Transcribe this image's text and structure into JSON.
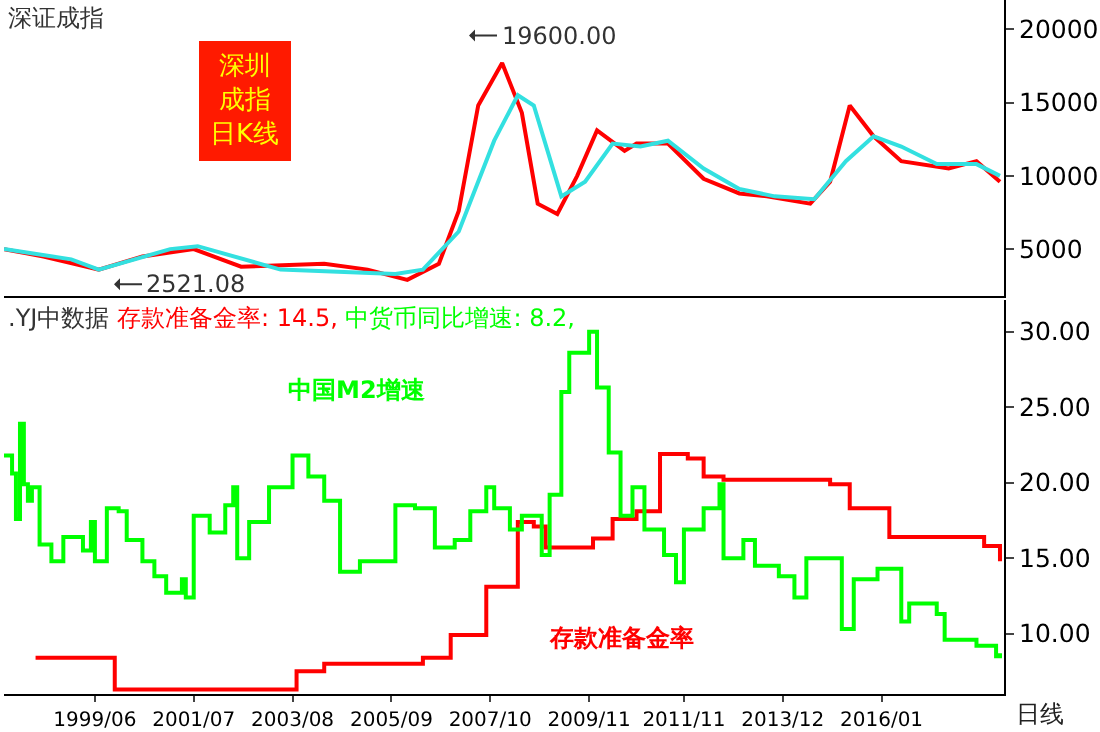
{
  "chart_data": [
    {
      "type": "line",
      "title": "深证成指",
      "xlim": [
        "1997-07",
        "2018-08"
      ],
      "ylim": [
        1800,
        22000
      ],
      "yticks": [
        5000,
        10000,
        15000,
        20000
      ],
      "tick_labels": "y",
      "annotations": [
        "19600.00",
        "2521.08",
        "深圳成指日K线"
      ],
      "series": [
        {
          "color": "#ff0000",
          "x": [
            "1997-07",
            "1998-05",
            "1999-07",
            "2000-06",
            "2001-07",
            "2002-07",
            "2004-04",
            "2005-03",
            "2006-01",
            "2006-09",
            "2007-02",
            "2007-07",
            "2008-01",
            "2008-06",
            "2008-10",
            "2009-03",
            "2009-08",
            "2010-01",
            "2010-08",
            "2010-11",
            "2011-07",
            "2012-04",
            "2013-01",
            "2013-08",
            "2014-07",
            "2014-12",
            "2015-05",
            "2015-11",
            "2016-06",
            "2017-06",
            "2018-01",
            "2018-07"
          ],
          "values": [
            5000,
            4500,
            3600,
            4500,
            5000,
            3800,
            4000,
            3600,
            2900,
            4000,
            7600,
            14800,
            17700,
            14300,
            8100,
            7400,
            10000,
            13100,
            11700,
            12200,
            12200,
            9800,
            8800,
            8600,
            8100,
            9600,
            14800,
            12700,
            11000,
            10500,
            11000,
            9600
          ]
        },
        {
          "color": "#33e0e0",
          "x": [
            "1997-07",
            "1998-12",
            "1999-07",
            "2001-01",
            "2001-08",
            "2003-05",
            "2005-10",
            "2006-05",
            "2007-02",
            "2007-11",
            "2008-05",
            "2008-09",
            "2009-04",
            "2009-10",
            "2010-05",
            "2010-12",
            "2011-07",
            "2012-04",
            "2013-01",
            "2013-10",
            "2014-08",
            "2015-04",
            "2015-11",
            "2016-06",
            "2017-03",
            "2018-01",
            "2018-07"
          ],
          "values": [
            5000,
            4300,
            3600,
            5000,
            5200,
            3600,
            3300,
            3600,
            6200,
            12400,
            15500,
            14800,
            8600,
            9600,
            12200,
            12000,
            12400,
            10500,
            9100,
            8600,
            8400,
            11000,
            12700,
            12000,
            10800,
            10800,
            10000
          ]
        }
      ]
    },
    {
      "type": "step",
      "xlim": [
        "1997-07",
        "2018-08"
      ],
      "ylim": [
        6.0,
        32.1
      ],
      "xticks": [
        {
          "value": "1999-06",
          "label": "1999/06"
        },
        {
          "value": "2001-07",
          "label": "2001/07"
        },
        {
          "value": "2003-08",
          "label": "2003/08"
        },
        {
          "value": "2005-09",
          "label": "2005/09"
        },
        {
          "value": "2007-10",
          "label": "2007/10"
        },
        {
          "value": "2009-11",
          "label": "2009/11"
        },
        {
          "value": "2011-11",
          "label": "2011/11"
        },
        {
          "value": "2013-12",
          "label": "2013/12"
        },
        {
          "value": "2016-01",
          "label": "2016/01"
        }
      ],
      "yticks": [
        {
          "value": 10,
          "label": "10.00"
        },
        {
          "value": 15,
          "label": "15.00"
        },
        {
          "value": 20,
          "label": "20.00"
        },
        {
          "value": 25,
          "label": "25.00"
        },
        {
          "value": 30,
          "label": "30.00"
        }
      ],
      "annotations": [
        ".YJ中数据",
        "存款准备金率: 14.5,",
        "中货币同比增速: 8.2,",
        "日线"
      ],
      "series": [
        {
          "name": "存款准备金率",
          "color": "#ff0000",
          "x": [
            "1998-03",
            "1999-11",
            "2003-09",
            "2004-04",
            "2006-05",
            "2006-12",
            "2007-09",
            "2008-05",
            "2008-09",
            "2008-12",
            "2009-12",
            "2010-05",
            "2010-11",
            "2011-05",
            "2011-12",
            "2012-04",
            "2012-09",
            "2014-12",
            "2015-05",
            "2016-03",
            "2018-03",
            "2018-07"
          ],
          "values": [
            8.4,
            6.3,
            7.5,
            8.0,
            8.4,
            9.9,
            13.1,
            17.4,
            17.1,
            15.7,
            16.3,
            17.6,
            18.1,
            21.9,
            21.6,
            20.4,
            20.2,
            19.9,
            18.3,
            16.4,
            15.8,
            14.8
          ]
        },
        {
          "name": "中国M2增速",
          "color": "#00ff00",
          "x": [
            "1997-07",
            "1997-09",
            "1997-10",
            "1997-11",
            "1997-12",
            "1998-01",
            "1998-02",
            "1998-04",
            "1998-07",
            "1998-10",
            "1999-03",
            "1999-05",
            "1999-06",
            "1999-09",
            "1999-12",
            "2000-02",
            "2000-06",
            "2000-09",
            "2000-12",
            "2001-04",
            "2001-05",
            "2001-07",
            "2001-11",
            "2002-03",
            "2002-05",
            "2002-06",
            "2002-09",
            "2003-02",
            "2003-08",
            "2003-12",
            "2004-04",
            "2004-08",
            "2005-01",
            "2005-06",
            "2005-10",
            "2006-03",
            "2006-08",
            "2007-01",
            "2007-05",
            "2007-09",
            "2007-11",
            "2008-03",
            "2008-06",
            "2008-11",
            "2009-01",
            "2009-04",
            "2009-06",
            "2009-11",
            "2010-01",
            "2010-04",
            "2010-07",
            "2010-10",
            "2011-01",
            "2011-06",
            "2011-09",
            "2011-11",
            "2012-04",
            "2012-08",
            "2012-09",
            "2013-02",
            "2013-05",
            "2013-11",
            "2014-03",
            "2014-06",
            "2015-03",
            "2015-06",
            "2015-12",
            "2016-06",
            "2016-08",
            "2017-03",
            "2017-05",
            "2018-01",
            "2018-06",
            "2018-07"
          ],
          "values": [
            21.8,
            20.6,
            17.6,
            23.9,
            19.9,
            18.8,
            19.7,
            15.9,
            14.8,
            16.4,
            15.5,
            17.4,
            14.8,
            18.3,
            18.1,
            16.2,
            14.8,
            13.8,
            12.7,
            13.6,
            12.4,
            17.8,
            16.7,
            18.5,
            19.7,
            15.0,
            17.4,
            19.7,
            21.8,
            20.4,
            18.8,
            14.1,
            14.8,
            14.8,
            18.5,
            18.3,
            15.7,
            16.2,
            18.1,
            19.7,
            18.3,
            16.9,
            17.8,
            15.2,
            19.2,
            26.0,
            28.6,
            30.0,
            26.3,
            22.0,
            17.8,
            19.7,
            16.9,
            15.2,
            13.4,
            16.9,
            18.3,
            19.9,
            15.0,
            16.2,
            14.5,
            13.8,
            12.4,
            15.0,
            10.3,
            13.6,
            14.3,
            10.8,
            12.0,
            11.3,
            9.6,
            9.2,
            8.5,
            8.7
          ]
        }
      ]
    }
  ]
}
